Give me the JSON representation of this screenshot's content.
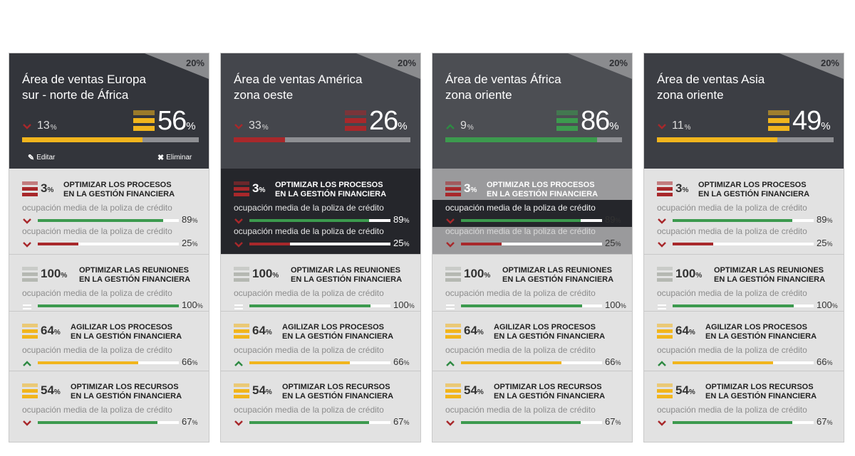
{
  "colors": {
    "red": "#a8282b",
    "green": "#3c9a4e",
    "yellow": "#f1b51d",
    "dim": "#b5b8b2"
  },
  "cards": [
    {
      "corner": "20%",
      "title": [
        "Área de ventas Europa",
        "sur - norte de África"
      ],
      "trend": {
        "dir": "down",
        "value": "13",
        "unit": "%"
      },
      "big": {
        "value": "56",
        "unit": "%",
        "color": "yellow"
      },
      "progress": {
        "value": 0.68,
        "color": "yellow"
      },
      "actions": {
        "edit": "Editar",
        "delete": "Eliminar"
      },
      "kpis": [
        {
          "value": "3",
          "unit": "%",
          "color": "red",
          "label": [
            "Optimizar los procesos",
            "en la gestión financiera"
          ],
          "metrics": [
            {
              "sub": "ocupación media de la poliza de crédito",
              "dir": "down",
              "value": "89",
              "unit": "%",
              "fill": 0.89,
              "color": "green"
            },
            {
              "sub": "ocupación media de la poliza de crédito",
              "dir": "down",
              "value": "25",
              "unit": "%",
              "fill": 0.29,
              "color": "red"
            }
          ]
        },
        {
          "value": "100",
          "unit": "%",
          "color": "dim",
          "label": [
            "Optimizar las reuniones",
            "en la gestión financiera"
          ],
          "metrics": [
            {
              "sub": "ocupación media de la poliza de crédito",
              "dir": "flat",
              "value": "100",
              "unit": "%",
              "fill": 1.0,
              "color": "green"
            }
          ]
        },
        {
          "value": "64",
          "unit": "%",
          "color": "yellow",
          "label": [
            "Agilizar los procesos",
            "en la gestión financiera"
          ],
          "metrics": [
            {
              "sub": "ocupación media de la poliza de crédito",
              "dir": "up",
              "value": "66",
              "unit": "%",
              "fill": 0.71,
              "color": "yellow"
            }
          ]
        },
        {
          "value": "54",
          "unit": "%",
          "color": "yellow",
          "label": [
            "Optimizar los recursos",
            "en la gestión financiera"
          ],
          "metrics": [
            {
              "sub": "ocupación media de la poliza de crédito",
              "dir": "down",
              "value": "67",
              "unit": "%",
              "fill": 0.85,
              "color": "green"
            }
          ]
        }
      ]
    },
    {
      "corner": "20%",
      "title": [
        "Área de ventas América",
        "zona oeste"
      ],
      "trend": {
        "dir": "down",
        "value": "33",
        "unit": "%"
      },
      "big": {
        "value": "26",
        "unit": "%",
        "color": "red"
      },
      "progress": {
        "value": 0.29,
        "color": "red"
      },
      "kpis": [
        {
          "value": "3",
          "unit": "%",
          "color": "red",
          "label": [
            "Optimizar los procesos",
            "en la gestión financiera"
          ],
          "metrics": [
            {
              "sub": "ocupación media de la poliza de crédito",
              "dir": "down",
              "value": "89",
              "unit": "%",
              "fill": 0.85,
              "color": "green"
            },
            {
              "sub": "ocupación media de la poliza de crédito",
              "dir": "down",
              "value": "25",
              "unit": "%",
              "fill": 0.29,
              "color": "red"
            }
          ]
        },
        {
          "value": "100",
          "unit": "%",
          "color": "dim",
          "label": [
            "Optimizar las reuniones",
            "en la gestión financiera"
          ],
          "metrics": [
            {
              "sub": "ocupación media de la poliza de crédito",
              "dir": "flat",
              "value": "100",
              "unit": "%",
              "fill": 0.86,
              "color": "green"
            }
          ]
        },
        {
          "value": "64",
          "unit": "%",
          "color": "yellow",
          "label": [
            "Agilizar los procesos",
            "en la gestión financiera"
          ],
          "metrics": [
            {
              "sub": "ocupación media de la poliza de crédito",
              "dir": "up",
              "value": "66",
              "unit": "%",
              "fill": 0.71,
              "color": "yellow"
            }
          ]
        },
        {
          "value": "54",
          "unit": "%",
          "color": "yellow",
          "label": [
            "Optimizar los recursos",
            "en la gestión financiera"
          ],
          "metrics": [
            {
              "sub": "ocupación media de la poliza de crédito",
              "dir": "down",
              "value": "67",
              "unit": "%",
              "fill": 0.85,
              "color": "green"
            }
          ]
        }
      ]
    },
    {
      "corner": "20%",
      "title": [
        "Área de ventas África",
        "zona oriente"
      ],
      "trend": {
        "dir": "up",
        "value": "9",
        "unit": "%"
      },
      "big": {
        "value": "86",
        "unit": "%",
        "color": "green"
      },
      "progress": {
        "value": 0.86,
        "color": "green"
      },
      "kpis": [
        {
          "value": "3",
          "unit": "%",
          "color": "red",
          "label": [
            "Optimizar los procesos",
            "en la gestión financiera"
          ],
          "metrics": [
            {
              "sub": "ocupación media de la poliza de crédito",
              "dir": "down",
              "value": "89",
              "unit": "%",
              "fill": 0.85,
              "color": "green"
            },
            {
              "sub": "ocupación media de la poliza de crédito",
              "dir": "down",
              "value": "25",
              "unit": "%",
              "fill": 0.29,
              "color": "red"
            }
          ]
        },
        {
          "value": "100",
          "unit": "%",
          "color": "dim",
          "label": [
            "Optimizar las reuniones",
            "en la gestión financiera"
          ],
          "metrics": [
            {
              "sub": "ocupación media de la poliza de crédito",
              "dir": "flat",
              "value": "100",
              "unit": "%",
              "fill": 0.86,
              "color": "green"
            }
          ]
        },
        {
          "value": "64",
          "unit": "%",
          "color": "yellow",
          "label": [
            "Agilizar los procesos",
            "en la gestión financiera"
          ],
          "metrics": [
            {
              "sub": "ocupación media de la poliza de crédito",
              "dir": "up",
              "value": "66",
              "unit": "%",
              "fill": 0.71,
              "color": "yellow"
            }
          ]
        },
        {
          "value": "54",
          "unit": "%",
          "color": "yellow",
          "label": [
            "Optimizar los recursos",
            "en la gestión financiera"
          ],
          "metrics": [
            {
              "sub": "ocupación media de la poliza de crédito",
              "dir": "down",
              "value": "67",
              "unit": "%",
              "fill": 0.85,
              "color": "green"
            }
          ]
        }
      ]
    },
    {
      "corner": "20%",
      "title": [
        "Área de ventas Asia",
        "zona oriente"
      ],
      "trend": {
        "dir": "down",
        "value": "11",
        "unit": "%"
      },
      "big": {
        "value": "49",
        "unit": "%",
        "color": "yellow"
      },
      "progress": {
        "value": 0.68,
        "color": "yellow"
      },
      "kpis": [
        {
          "value": "3",
          "unit": "%",
          "color": "red",
          "label": [
            "Optimizar los procesos",
            "en la gestión financiera"
          ],
          "metrics": [
            {
              "sub": "ocupación media de la poliza de crédito",
              "dir": "down",
              "value": "89",
              "unit": "%",
              "fill": 0.85,
              "color": "green"
            },
            {
              "sub": "ocupación media de la poliza de crédito",
              "dir": "down",
              "value": "25",
              "unit": "%",
              "fill": 0.29,
              "color": "red"
            }
          ]
        },
        {
          "value": "100",
          "unit": "%",
          "color": "dim",
          "label": [
            "Optimizar las reuniones",
            "en la gestión financiera"
          ],
          "metrics": [
            {
              "sub": "ocupación media de la poliza de crédito",
              "dir": "flat",
              "value": "100",
              "unit": "%",
              "fill": 0.86,
              "color": "green"
            }
          ]
        },
        {
          "value": "64",
          "unit": "%",
          "color": "yellow",
          "label": [
            "Agilizar los procesos",
            "en la gestión financiera"
          ],
          "metrics": [
            {
              "sub": "ocupación media de la poliza de crédito",
              "dir": "up",
              "value": "66",
              "unit": "%",
              "fill": 0.71,
              "color": "yellow"
            }
          ]
        },
        {
          "value": "54",
          "unit": "%",
          "color": "yellow",
          "label": [
            "Optimizar los recursos",
            "en la gestión financiera"
          ],
          "metrics": [
            {
              "sub": "ocupación media de la poliza de crédito",
              "dir": "down",
              "value": "67",
              "unit": "%",
              "fill": 0.85,
              "color": "green"
            }
          ]
        }
      ]
    }
  ]
}
